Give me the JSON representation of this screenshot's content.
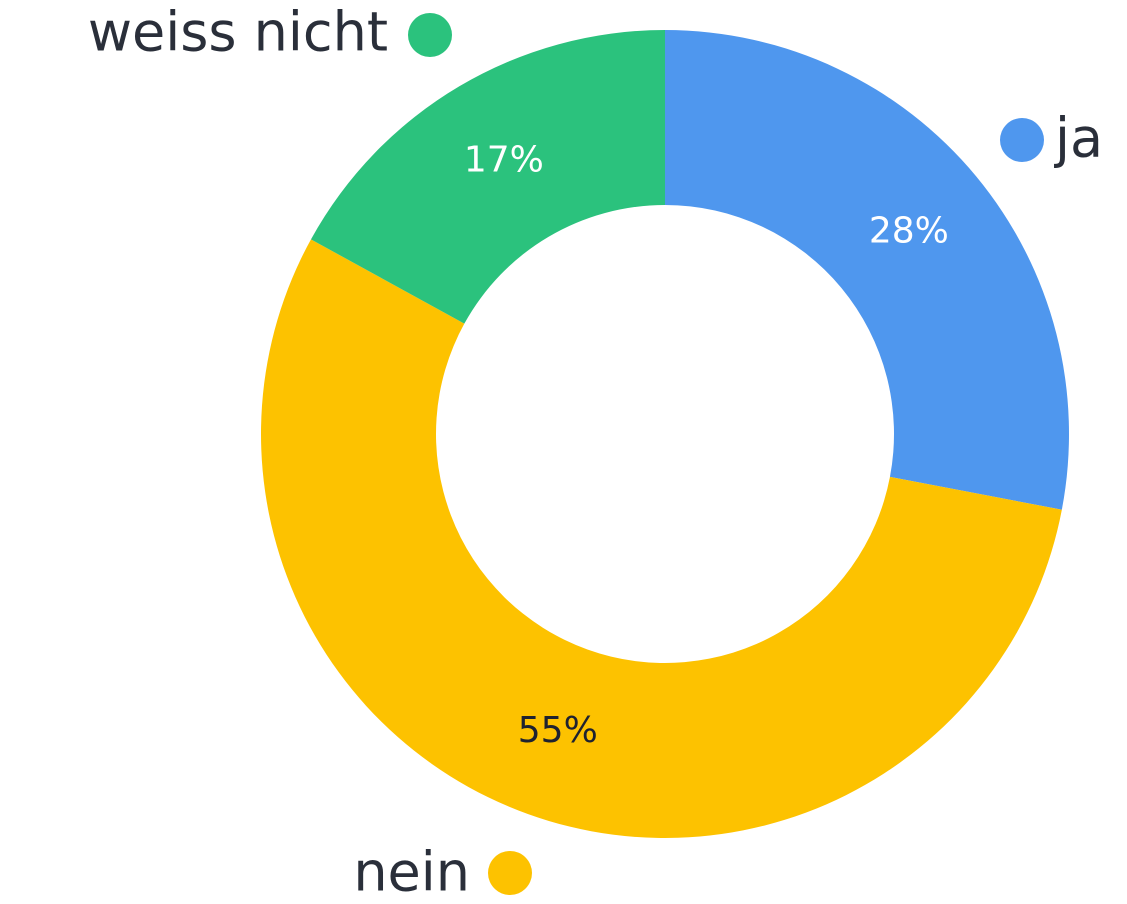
{
  "chart_data": {
    "type": "donut",
    "categories": [
      "ja",
      "nein",
      "weiss nicht"
    ],
    "values": [
      28,
      55,
      17
    ],
    "value_labels": [
      "28%",
      "55%",
      "17%"
    ],
    "colors": [
      "#4f97ee",
      "#fdc200",
      "#2bc27d"
    ]
  }
}
